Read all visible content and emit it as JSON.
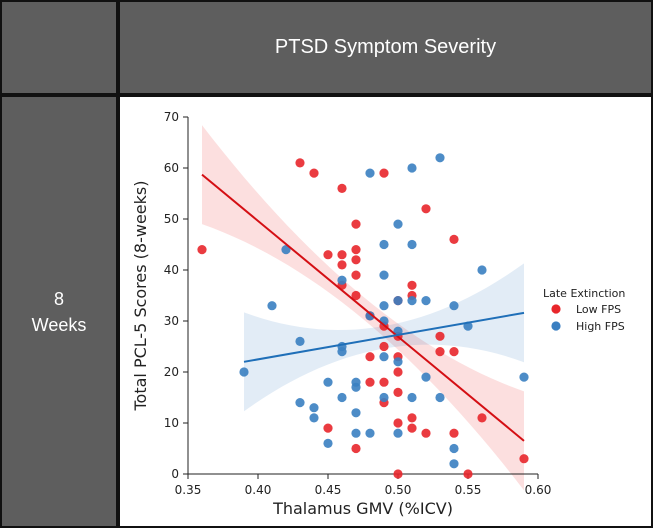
{
  "table": {
    "column_header": "PTSD Symptom Severity",
    "row_header": [
      "8",
      "Weeks"
    ]
  },
  "chart_data": {
    "type": "scatter",
    "xlabel": "Thalamus GMV (%ICV)",
    "ylabel": "Total PCL-5 Scores (8-weeks)",
    "xlim": [
      0.35,
      0.6
    ],
    "ylim": [
      0,
      70
    ],
    "xticks": [
      "0.35",
      "0.40",
      "0.45",
      "0.50",
      "0.55",
      "0.60"
    ],
    "yticks": [
      "0",
      "10",
      "20",
      "30",
      "40",
      "50",
      "60",
      "70"
    ],
    "grid": false,
    "legend": {
      "title": "Late Extinction",
      "placement": "right-outside",
      "entries": [
        "Low FPS",
        "High FPS"
      ]
    },
    "series": [
      {
        "name": "Low FPS",
        "color": "#e8262b",
        "points": [
          [
            0.36,
            44
          ],
          [
            0.43,
            61
          ],
          [
            0.44,
            59
          ],
          [
            0.46,
            56
          ],
          [
            0.49,
            59
          ],
          [
            0.47,
            49
          ],
          [
            0.52,
            52
          ],
          [
            0.54,
            46
          ],
          [
            0.45,
            43
          ],
          [
            0.46,
            43
          ],
          [
            0.47,
            44
          ],
          [
            0.46,
            41
          ],
          [
            0.47,
            42
          ],
          [
            0.47,
            39
          ],
          [
            0.46,
            37
          ],
          [
            0.47,
            35
          ],
          [
            0.51,
            37
          ],
          [
            0.51,
            35
          ],
          [
            0.5,
            34
          ],
          [
            0.48,
            31
          ],
          [
            0.49,
            29
          ],
          [
            0.5,
            27
          ],
          [
            0.53,
            27
          ],
          [
            0.49,
            25
          ],
          [
            0.53,
            24
          ],
          [
            0.54,
            24
          ],
          [
            0.48,
            23
          ],
          [
            0.5,
            23
          ],
          [
            0.48,
            18
          ],
          [
            0.49,
            18
          ],
          [
            0.5,
            20
          ],
          [
            0.5,
            16
          ],
          [
            0.49,
            14
          ],
          [
            0.51,
            11
          ],
          [
            0.5,
            10
          ],
          [
            0.51,
            9
          ],
          [
            0.52,
            8
          ],
          [
            0.54,
            8
          ],
          [
            0.45,
            9
          ],
          [
            0.47,
            5
          ],
          [
            0.56,
            11
          ],
          [
            0.59,
            3
          ],
          [
            0.5,
            0
          ],
          [
            0.55,
            0
          ]
        ],
        "fit": {
          "x": [
            0.36,
            0.59
          ],
          "y": [
            58.7,
            6.5
          ]
        }
      },
      {
        "name": "High FPS",
        "color": "#3a7fc1",
        "points": [
          [
            0.53,
            62
          ],
          [
            0.51,
            60
          ],
          [
            0.48,
            59
          ],
          [
            0.5,
            49
          ],
          [
            0.49,
            45
          ],
          [
            0.51,
            45
          ],
          [
            0.42,
            44
          ],
          [
            0.56,
            40
          ],
          [
            0.46,
            38
          ],
          [
            0.49,
            39
          ],
          [
            0.41,
            33
          ],
          [
            0.49,
            33
          ],
          [
            0.51,
            34
          ],
          [
            0.52,
            34
          ],
          [
            0.5,
            34
          ],
          [
            0.54,
            33
          ],
          [
            0.48,
            31
          ],
          [
            0.49,
            30
          ],
          [
            0.5,
            28
          ],
          [
            0.55,
            29
          ],
          [
            0.43,
            26
          ],
          [
            0.46,
            25
          ],
          [
            0.46,
            24
          ],
          [
            0.49,
            23
          ],
          [
            0.5,
            22
          ],
          [
            0.52,
            19
          ],
          [
            0.39,
            20
          ],
          [
            0.45,
            18
          ],
          [
            0.47,
            18
          ],
          [
            0.47,
            17
          ],
          [
            0.59,
            19
          ],
          [
            0.46,
            15
          ],
          [
            0.49,
            15
          ],
          [
            0.51,
            15
          ],
          [
            0.53,
            15
          ],
          [
            0.43,
            14
          ],
          [
            0.44,
            13
          ],
          [
            0.44,
            11
          ],
          [
            0.47,
            12
          ],
          [
            0.47,
            8
          ],
          [
            0.48,
            8
          ],
          [
            0.5,
            8
          ],
          [
            0.45,
            6
          ],
          [
            0.54,
            5
          ],
          [
            0.54,
            2
          ]
        ],
        "fit": {
          "x": [
            0.39,
            0.59
          ],
          "y": [
            22.0,
            31.6
          ]
        }
      }
    ]
  }
}
